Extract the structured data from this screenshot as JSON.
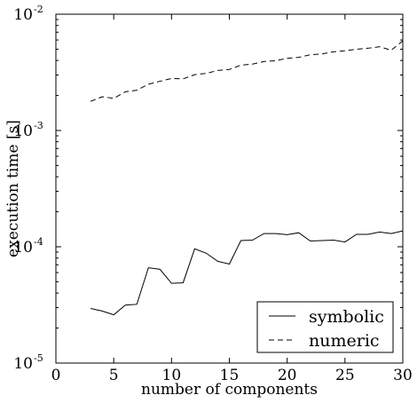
{
  "chart_data": {
    "type": "line",
    "xlabel": "number of components",
    "ylabel": "execution time [s]",
    "xlim": [
      0,
      30
    ],
    "ylim": [
      1e-05,
      0.01
    ],
    "yscale": "log",
    "grid": false,
    "legend_position": "bottom-right",
    "x_ticks": [
      0,
      5,
      10,
      15,
      20,
      25,
      30
    ],
    "x_tick_labels": [
      "0",
      "5",
      "10",
      "15",
      "20",
      "25",
      "30"
    ],
    "y_ticks": [
      1e-05,
      0.0001,
      0.001,
      0.01
    ],
    "y_tick_labels": [
      {
        "base": "10",
        "exp": "-5"
      },
      {
        "base": "10",
        "exp": "-4"
      },
      {
        "base": "10",
        "exp": "-3"
      },
      {
        "base": "10",
        "exp": "-2"
      }
    ],
    "x": [
      3,
      4,
      5,
      6,
      7,
      8,
      9,
      10,
      11,
      12,
      13,
      14,
      15,
      16,
      17,
      18,
      19,
      20,
      21,
      22,
      23,
      24,
      25,
      26,
      27,
      28,
      29,
      30
    ],
    "series": [
      {
        "name": "symbolic",
        "style": "solid",
        "color": "#000000",
        "values": [
          2.95e-05,
          2.8e-05,
          2.6e-05,
          3.15e-05,
          3.2e-05,
          6.6e-05,
          6.4e-05,
          4.85e-05,
          4.9e-05,
          9.6e-05,
          8.8e-05,
          7.5e-05,
          7.1e-05,
          0.000113,
          0.000114,
          0.00013,
          0.00013,
          0.000127,
          0.000132,
          0.000112,
          0.000113,
          0.000114,
          0.00011,
          0.000128,
          0.000128,
          0.000134,
          0.00013,
          0.000137
        ]
      },
      {
        "name": "numeric",
        "style": "dashed",
        "color": "#000000",
        "values": [
          0.00178,
          0.00195,
          0.00189,
          0.00215,
          0.00222,
          0.0025,
          0.00265,
          0.0028,
          0.00278,
          0.00302,
          0.0031,
          0.00328,
          0.00335,
          0.00365,
          0.00372,
          0.00392,
          0.00398,
          0.00418,
          0.00425,
          0.00448,
          0.00455,
          0.00475,
          0.00485,
          0.005,
          0.0051,
          0.00525,
          0.0049,
          0.0059
        ]
      }
    ]
  }
}
